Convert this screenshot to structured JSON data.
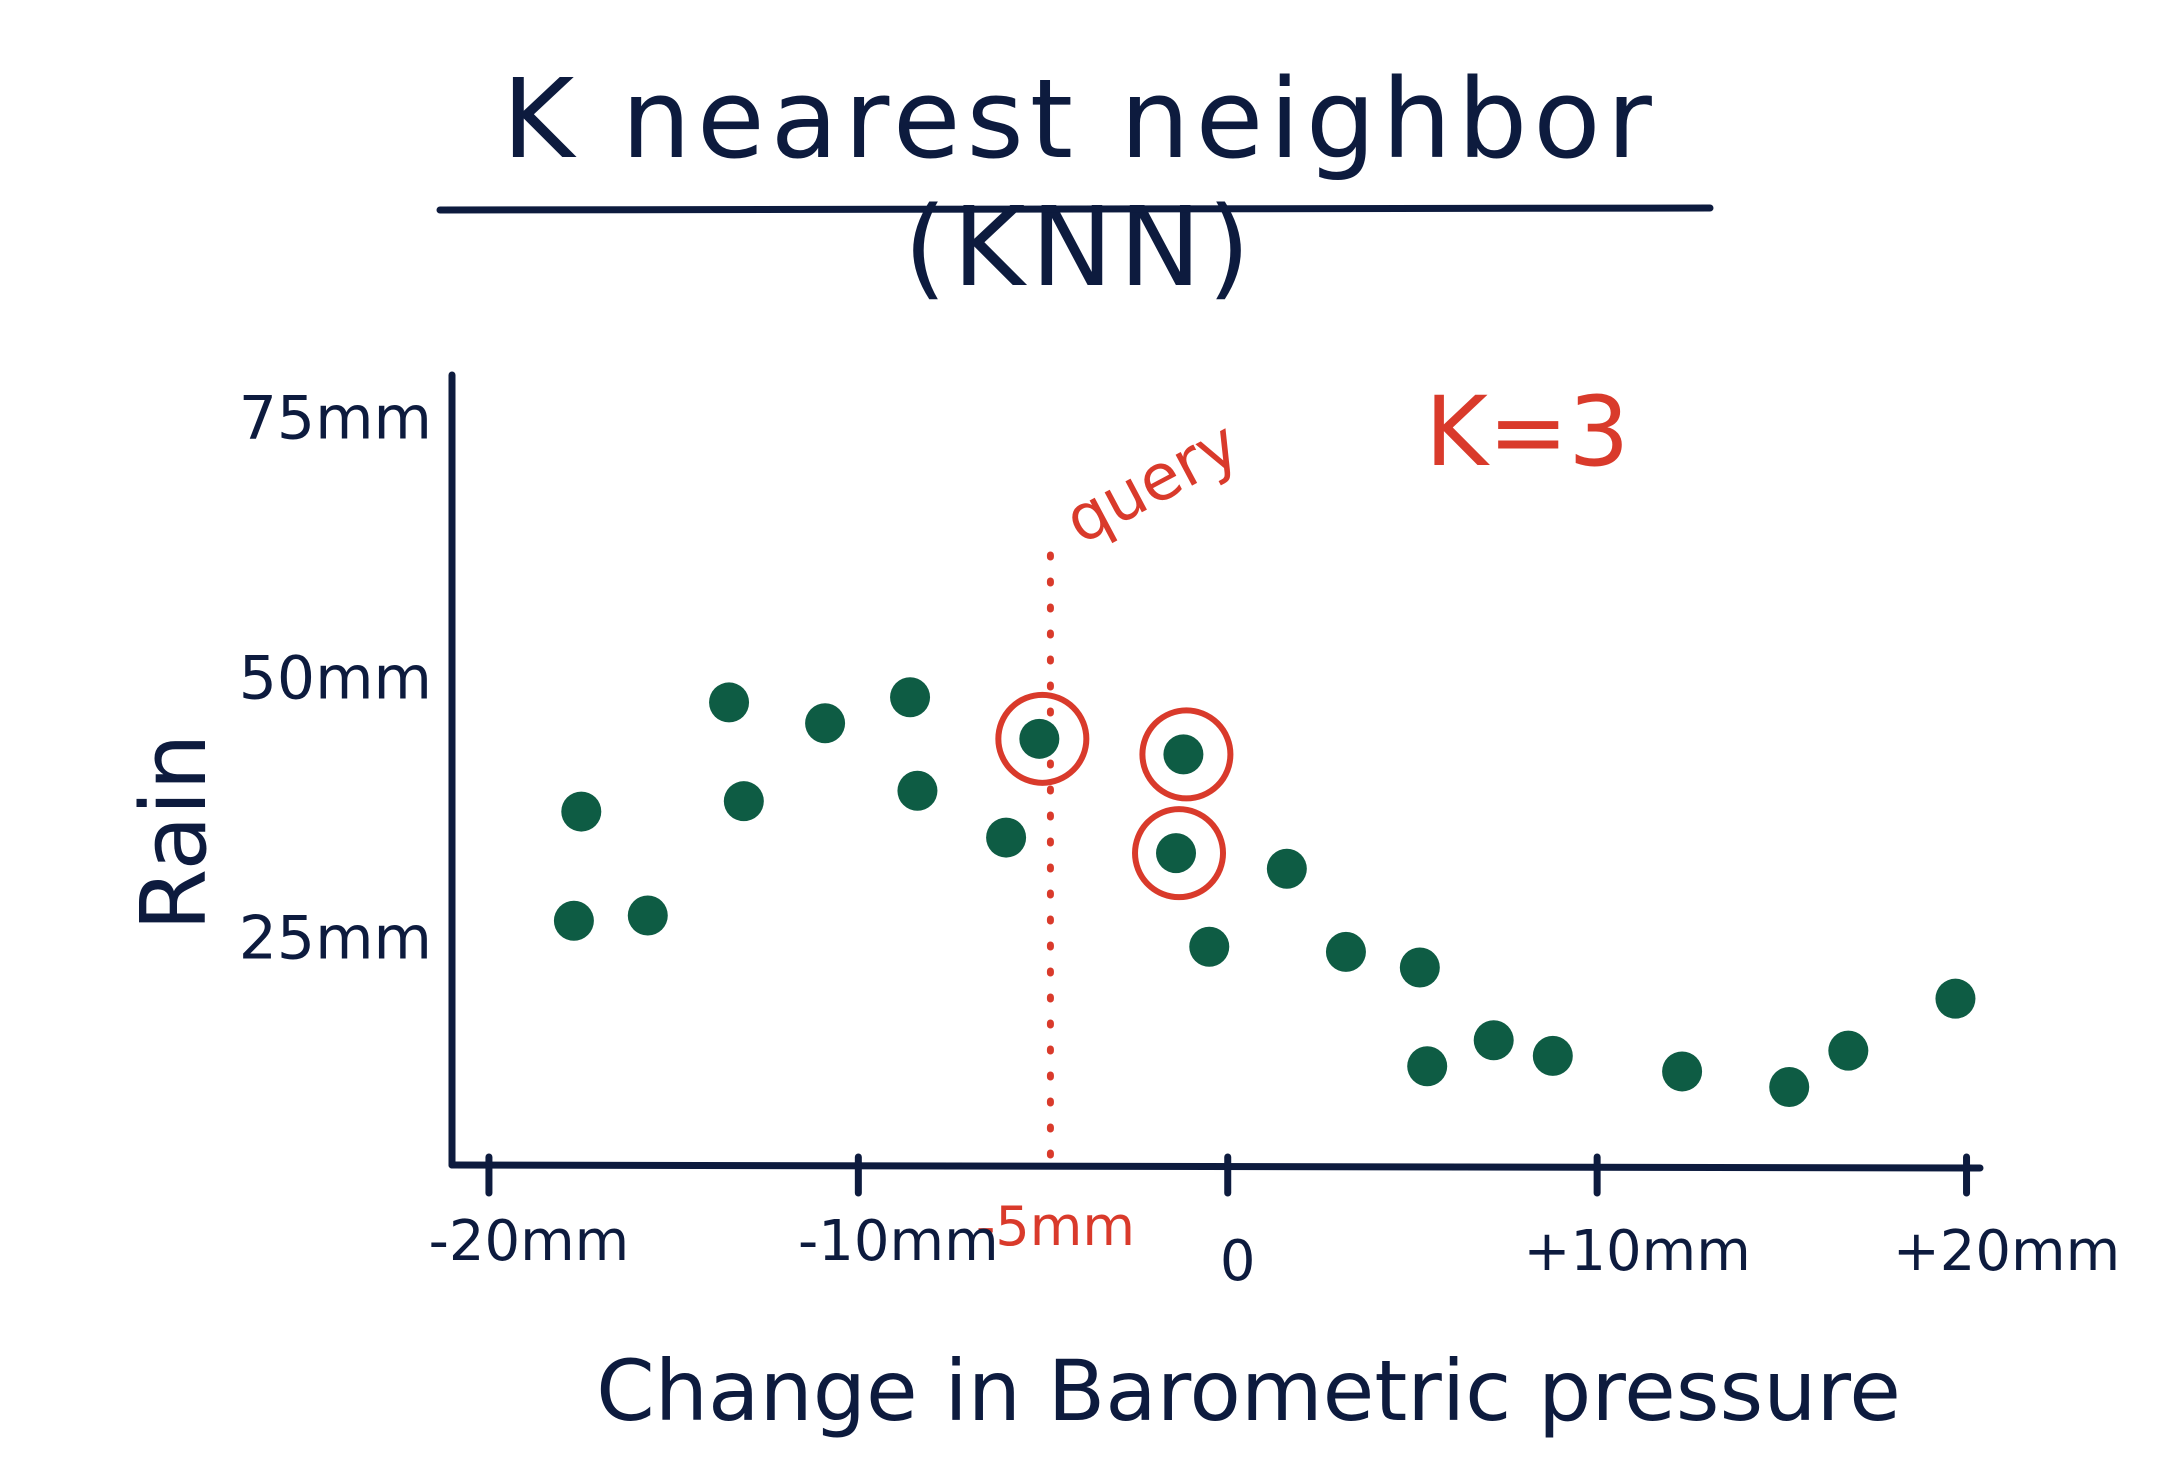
{
  "chart_data": {
    "type": "scatter",
    "title": "K nearest neighbor (KNN)",
    "xlabel": "Change in Barometric pressure",
    "ylabel": "Rain",
    "xlim": [
      -21,
      20.5
    ],
    "ylim": [
      3,
      79
    ],
    "x_ticks": [
      {
        "value": -20,
        "label": "-20mm"
      },
      {
        "value": -10,
        "label": "-10mm"
      },
      {
        "value": 0,
        "label": "0"
      },
      {
        "value": 10,
        "label": "+10mm"
      },
      {
        "value": 20,
        "label": "+20mm"
      }
    ],
    "y_ticks": [
      {
        "value": 75,
        "label": "75mm"
      },
      {
        "value": 50,
        "label": "50mm"
      },
      {
        "value": 25,
        "label": "25mm"
      }
    ],
    "points": [
      {
        "x": -17.5,
        "y": 37
      },
      {
        "x": -17.7,
        "y": 26.5
      },
      {
        "x": -15.7,
        "y": 27
      },
      {
        "x": -13.5,
        "y": 47.5
      },
      {
        "x": -13.1,
        "y": 38
      },
      {
        "x": -10.9,
        "y": 45.5
      },
      {
        "x": -8.6,
        "y": 48
      },
      {
        "x": -8.4,
        "y": 39
      },
      {
        "x": -6.0,
        "y": 34.5
      },
      {
        "x": -5.1,
        "y": 44,
        "neighbor": true
      },
      {
        "x": -1.2,
        "y": 42.5,
        "neighbor": true
      },
      {
        "x": -1.4,
        "y": 33,
        "neighbor": true
      },
      {
        "x": -0.5,
        "y": 24
      },
      {
        "x": 1.6,
        "y": 31.5
      },
      {
        "x": 3.2,
        "y": 23.5
      },
      {
        "x": 5.2,
        "y": 22
      },
      {
        "x": 5.4,
        "y": 12.5
      },
      {
        "x": 7.2,
        "y": 15
      },
      {
        "x": 8.8,
        "y": 13.5
      },
      {
        "x": 12.3,
        "y": 12
      },
      {
        "x": 15.2,
        "y": 10.5
      },
      {
        "x": 16.8,
        "y": 14
      },
      {
        "x": 19.7,
        "y": 19
      }
    ],
    "query": {
      "x": -4.8,
      "label": "query",
      "tick_label": "-5mm"
    },
    "annotation": "K=3",
    "colors": {
      "points": "#0e5c44",
      "ink": "#0d1b3e",
      "highlight": "#d93a2b"
    }
  }
}
